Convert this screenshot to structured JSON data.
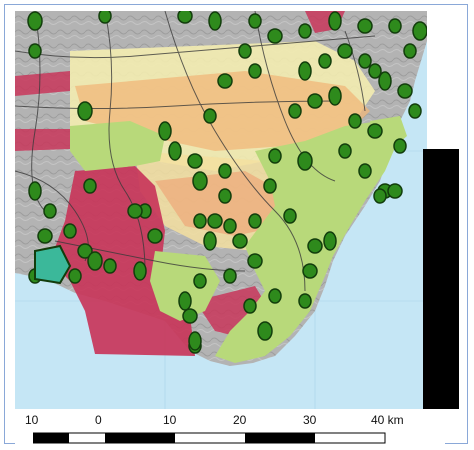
{
  "scale_bar": {
    "ticks": [
      "10",
      "0",
      "10",
      "20",
      "30",
      "40 km"
    ]
  },
  "colors": {
    "sea": "#c5e6f5",
    "land_grey": "#b7b7b7",
    "green_zone": "#b8d97a",
    "red_zone": "#c8365a",
    "yellow_band": "#f3ecb0",
    "orange_band": "#f0b77a",
    "marker_fill": "#2e8a1c",
    "marker_stroke": "#123d0c",
    "road": "#3a3a3a",
    "scale_dark": "#000000",
    "scale_light": "#ffffff"
  }
}
